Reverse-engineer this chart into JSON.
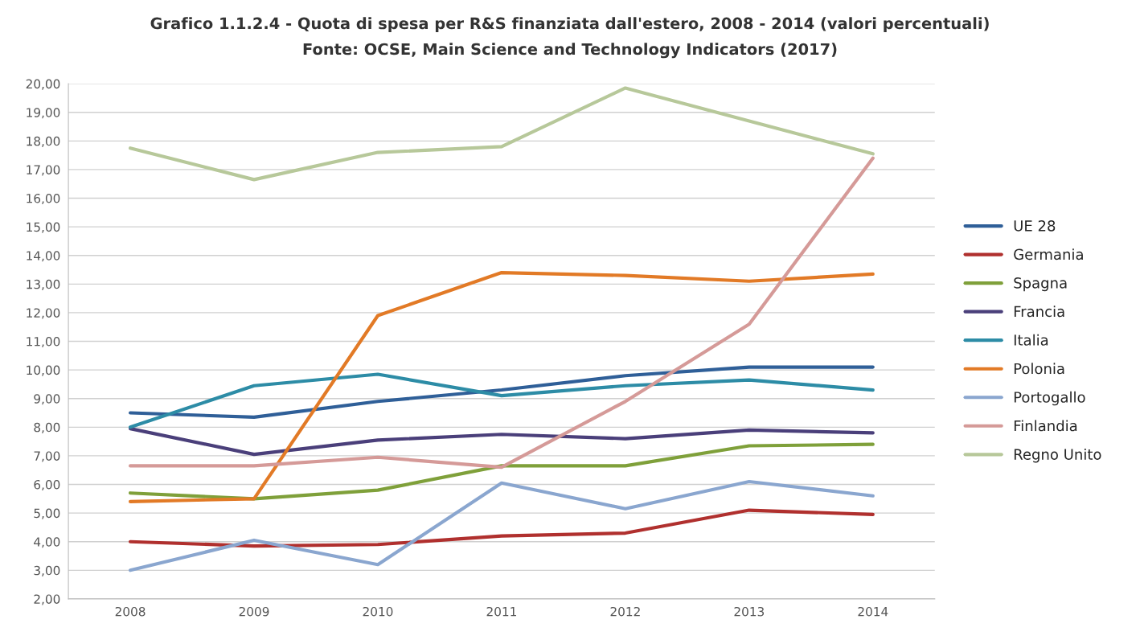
{
  "chart_data": {
    "type": "line",
    "title": "Grafico 1.1.2.4 - Quota di spesa per R&S finanziata dall'estero, 2008 - 2014 (valori percentuali)",
    "subtitle": "Fonte: OCSE, Main Science and Technology Indicators (2017)",
    "categories": [
      "2008",
      "2009",
      "2010",
      "2011",
      "2012",
      "2013",
      "2014"
    ],
    "series": [
      {
        "name": "UE 28",
        "color": "#2f5f98",
        "values": [
          8.5,
          8.35,
          8.9,
          9.3,
          9.8,
          10.1,
          10.1
        ]
      },
      {
        "name": "Germania",
        "color": "#b0302e",
        "values": [
          4.0,
          3.85,
          3.9,
          4.2,
          4.3,
          5.1,
          4.95
        ]
      },
      {
        "name": "Spagna",
        "color": "#7fa03a",
        "values": [
          5.7,
          5.5,
          5.8,
          6.65,
          6.65,
          7.35,
          7.4
        ]
      },
      {
        "name": "Francia",
        "color": "#4a3f7a",
        "values": [
          7.95,
          7.05,
          7.55,
          7.75,
          7.6,
          7.9,
          7.8
        ]
      },
      {
        "name": "Italia",
        "color": "#2d8ca6",
        "values": [
          8.0,
          9.45,
          9.85,
          9.1,
          9.45,
          9.65,
          9.3
        ]
      },
      {
        "name": "Polonia",
        "color": "#e27a26",
        "values": [
          5.4,
          5.5,
          11.9,
          13.4,
          13.3,
          13.1,
          13.35
        ]
      },
      {
        "name": "Portogallo",
        "color": "#8aa6cf",
        "values": [
          3.0,
          4.05,
          3.2,
          6.05,
          5.15,
          6.1,
          5.6
        ]
      },
      {
        "name": "Finlandia",
        "color": "#d59a98",
        "values": [
          6.65,
          6.65,
          6.95,
          6.6,
          8.9,
          11.6,
          17.4
        ]
      },
      {
        "name": "Regno Unito",
        "color": "#b7c89a",
        "values": [
          17.75,
          16.65,
          17.6,
          17.8,
          19.85,
          18.7,
          17.55
        ]
      }
    ],
    "ylim": [
      2,
      20
    ],
    "yticks": [
      {
        "value": 2,
        "label": "2,00"
      },
      {
        "value": 3,
        "label": "3,00"
      },
      {
        "value": 4,
        "label": "4,00"
      },
      {
        "value": 5,
        "label": "5,00"
      },
      {
        "value": 6,
        "label": "6,00"
      },
      {
        "value": 7,
        "label": "7,00"
      },
      {
        "value": 8,
        "label": "8,00"
      },
      {
        "value": 9,
        "label": "9,00"
      },
      {
        "value": 10,
        "label": "10,00"
      },
      {
        "value": 11,
        "label": "11,00"
      },
      {
        "value": 12,
        "label": "12,00"
      },
      {
        "value": 13,
        "label": "13,00"
      },
      {
        "value": 14,
        "label": "14,00"
      },
      {
        "value": 15,
        "label": "15,00"
      },
      {
        "value": 16,
        "label": "16,00"
      },
      {
        "value": 17,
        "label": "17,00"
      },
      {
        "value": 18,
        "label": "18,00"
      },
      {
        "value": 19,
        "label": "19,00"
      },
      {
        "value": 20,
        "label": "20,00"
      }
    ],
    "grid": "y",
    "legend": "right",
    "marker": "none",
    "line_style": "solid"
  }
}
